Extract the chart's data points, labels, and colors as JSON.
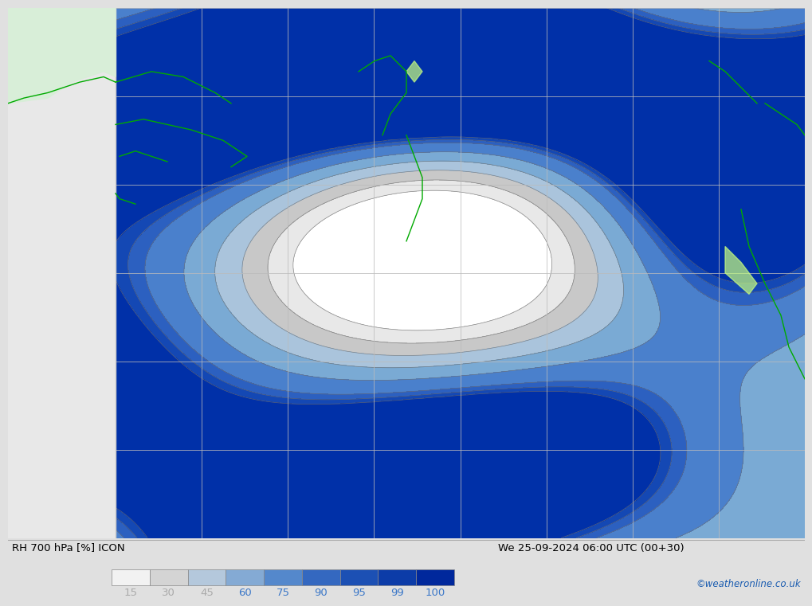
{
  "title_left": "RH 700 hPa [%] ICON",
  "title_right": "We 25-09-2024 06:00 UTC (00+30)",
  "colorbar_values": [
    15,
    30,
    45,
    60,
    75,
    90,
    95,
    99,
    100
  ],
  "colorbar_colors": [
    "#f2f2f2",
    "#d4d4d4",
    "#b4c8dc",
    "#84aad4",
    "#5488cc",
    "#3468c0",
    "#1c50b4",
    "#0c3ca8",
    "#00289c"
  ],
  "label_colors_light": [
    "#aaaaaa",
    "#aaaaaa",
    "#aaaaaa"
  ],
  "label_colors_dark": [
    "#3c78c8",
    "#3c78c8",
    "#3c78c8",
    "#3c78c8",
    "#3c78c8",
    "#3c78c8"
  ],
  "watermark": "©weatheronline.co.uk",
  "land_color": "#d8eed8",
  "land_border_color": "#c0c0c0",
  "ocean_bg": "#e8e8e8",
  "bottom_bg": "#e0e0e0",
  "grid_color": "#bbbbbb",
  "coast_color": "#00aa00",
  "fill_colors": [
    "#ffffff",
    "#e8e8e8",
    "#c8c8c8",
    "#aac4dc",
    "#7aaad4",
    "#4a80cc",
    "#2c60c0",
    "#1448b4",
    "#0030a8"
  ],
  "fill_levels": [
    0,
    15,
    30,
    45,
    60,
    75,
    90,
    95,
    99,
    101
  ],
  "contour_levels": [
    15,
    30,
    45,
    60,
    75,
    90,
    95,
    99
  ],
  "contour_color": "#707070",
  "contour_lw": 0.5
}
